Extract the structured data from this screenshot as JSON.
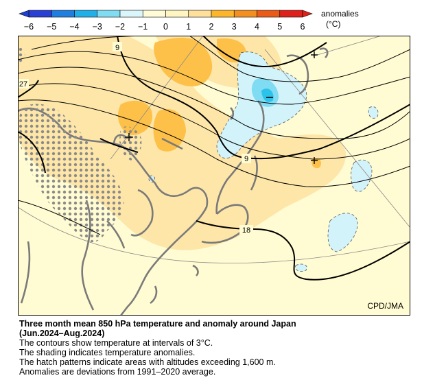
{
  "colorbar": {
    "title": "anomalies",
    "unit": "(°C)",
    "ticks": [
      "−6",
      "−5",
      "−4",
      "−3",
      "−2",
      "−1",
      "0",
      "1",
      "2",
      "3",
      "4",
      "5",
      "6"
    ],
    "colors": [
      "#2a3fd6",
      "#1f7fe0",
      "#1fb0ea",
      "#7fdcf2",
      "#d9f6fb",
      "#fffbd6",
      "#fff5c0",
      "#ffe09a",
      "#fdb62a",
      "#f38f1f",
      "#ec5a17",
      "#e0211b"
    ]
  },
  "map": {
    "credit": "CPD/JMA",
    "contour_labels": [
      "9",
      "27",
      "9",
      "18"
    ],
    "background_color": "#fffbd2"
  },
  "caption": {
    "title_line1": "Three month mean 850 hPa temperature and anomaly around Japan",
    "title_line2": "(Jun.2024–Aug.2024)",
    "line1": "The contours show temperature at intervals of 3°C.",
    "line2": "The shading indicates temperature anomalies.",
    "line3": "The hatch patterns indicate areas with altitudes exceeding 1,600 m.",
    "line4": "Anomalies are deviations from 1991–2020 average."
  }
}
